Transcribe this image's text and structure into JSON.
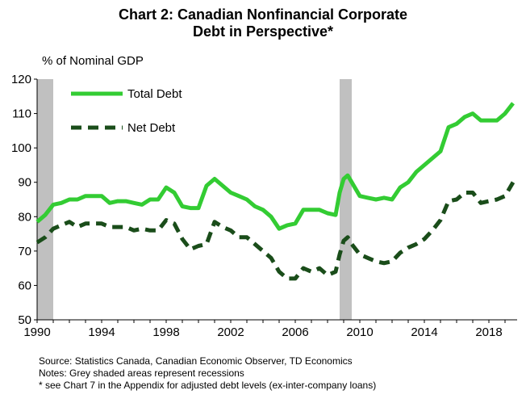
{
  "title_line1": "Chart 2: Canadian Nonfinancial  Corporate",
  "title_line2": "Debt in Perspective*",
  "notes": [
    "Source: Statistics Canada, Canadian Economic Observer, TD Economics",
    "Notes: Grey shaded areas represent recessions",
    "* see Chart 7 in the Appendix for adjusted debt levels (ex-inter-company  loans)"
  ],
  "colors": {
    "total": "#33cc33",
    "net": "#1a4d1a",
    "recession": "#c0c0c0"
  },
  "chart_data": {
    "type": "line",
    "ylabel": "% of Nominal GDP",
    "xlim": [
      1990,
      2019.75
    ],
    "ylim": [
      50,
      120
    ],
    "x_ticks": [
      1990,
      1994,
      1998,
      2002,
      2006,
      2010,
      2014,
      2018
    ],
    "y_ticks": [
      50,
      60,
      70,
      80,
      90,
      100,
      110,
      120
    ],
    "legend_position": "top-left",
    "recessions": [
      [
        1990.0,
        1991.0
      ],
      [
        2008.75,
        2009.5
      ]
    ],
    "series": [
      {
        "name": "Total Debt",
        "style": "solid",
        "x": [
          1990.0,
          1990.5,
          1991.0,
          1991.5,
          1992.0,
          1992.5,
          1993.0,
          1993.5,
          1994.0,
          1994.5,
          1995.0,
          1995.5,
          1996.0,
          1996.5,
          1997.0,
          1997.5,
          1998.0,
          1998.5,
          1999.0,
          1999.5,
          2000.0,
          2000.5,
          2001.0,
          2001.5,
          2002.0,
          2002.5,
          2003.0,
          2003.5,
          2004.0,
          2004.5,
          2005.0,
          2005.5,
          2006.0,
          2006.5,
          2007.0,
          2007.5,
          2008.0,
          2008.5,
          2008.75,
          2009.0,
          2009.25,
          2009.5,
          2010.0,
          2010.5,
          2011.0,
          2011.5,
          2012.0,
          2012.5,
          2013.0,
          2013.5,
          2014.0,
          2014.5,
          2015.0,
          2015.5,
          2016.0,
          2016.5,
          2017.0,
          2017.5,
          2018.0,
          2018.5,
          2019.0,
          2019.5
        ],
        "values": [
          78.5,
          80.5,
          83.5,
          84,
          85,
          85,
          86,
          86,
          86,
          84,
          84.5,
          84.5,
          84,
          83.5,
          85,
          85,
          88.5,
          87,
          83,
          82.5,
          82.5,
          89,
          91,
          89,
          87,
          86,
          85,
          83,
          82,
          80,
          76.5,
          77.5,
          78,
          82,
          82,
          82,
          81,
          80.5,
          87,
          91,
          92,
          90,
          86,
          85.5,
          85,
          85.5,
          85,
          88.5,
          90,
          93,
          95,
          97,
          99,
          106,
          107,
          109,
          110,
          108,
          108,
          108,
          110,
          113
        ]
      },
      {
        "name": "Net Debt",
        "style": "dashed",
        "x": [
          1990.0,
          1990.5,
          1991.0,
          1991.5,
          1992.0,
          1992.5,
          1993.0,
          1993.5,
          1994.0,
          1994.5,
          1995.0,
          1995.5,
          1996.0,
          1996.5,
          1997.0,
          1997.5,
          1998.0,
          1998.5,
          1999.0,
          1999.5,
          2000.0,
          2000.5,
          2001.0,
          2001.5,
          2002.0,
          2002.5,
          2003.0,
          2003.5,
          2004.0,
          2004.5,
          2005.0,
          2005.5,
          2006.0,
          2006.5,
          2007.0,
          2007.5,
          2008.0,
          2008.5,
          2008.75,
          2009.0,
          2009.25,
          2009.5,
          2010.0,
          2010.5,
          2011.0,
          2011.5,
          2012.0,
          2012.5,
          2013.0,
          2013.5,
          2014.0,
          2014.5,
          2015.0,
          2015.5,
          2016.0,
          2016.5,
          2017.0,
          2017.5,
          2018.0,
          2018.5,
          2019.0,
          2019.5
        ],
        "values": [
          72.5,
          74,
          76.5,
          77.5,
          78.5,
          77,
          78,
          78,
          78,
          77,
          77,
          77,
          76,
          76.5,
          76,
          76,
          79,
          78,
          73.5,
          70.5,
          71.5,
          72,
          78.5,
          77,
          76,
          74,
          74,
          72,
          70,
          68,
          64,
          62,
          62,
          65,
          64,
          65,
          63,
          64,
          69,
          73,
          74,
          72,
          69,
          68,
          67,
          66.5,
          67,
          69.5,
          71,
          72,
          73.5,
          76,
          79,
          84.5,
          85,
          87,
          87,
          84,
          84.5,
          85,
          86,
          90
        ]
      }
    ]
  }
}
